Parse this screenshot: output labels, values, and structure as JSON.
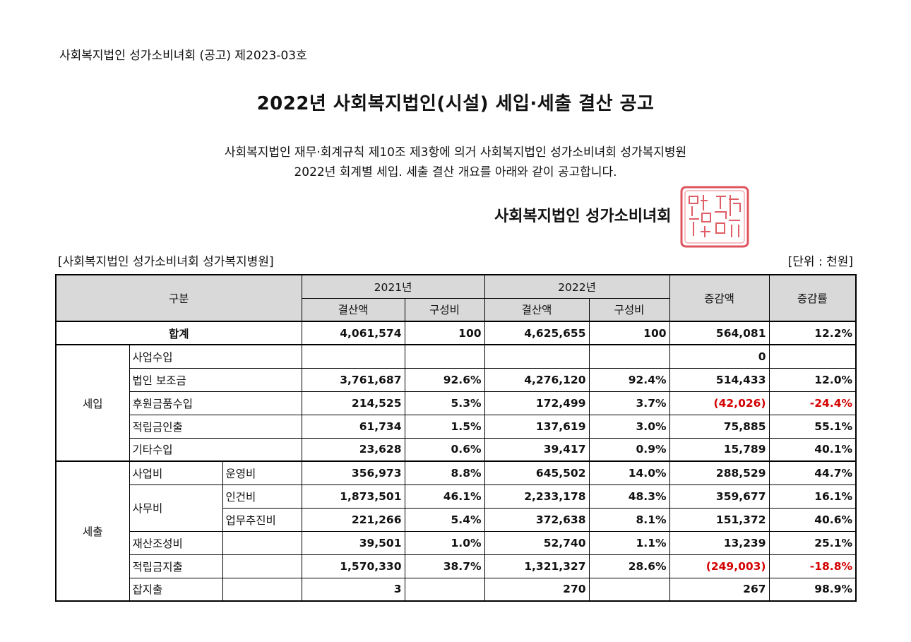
{
  "notice_number": "사회복지법인 성가소비녀회 (공고) 제2023-03호",
  "title": "2022년 사회복지법인(시설) 세입·세출 결산 공고",
  "intro_line1": "사회복지법인 재무·회계규칙 제10조 제3항에 의거 사회복지법인 성가소비녀회 성가복지병원",
  "intro_line2": "2022년 회계별 세입. 세출 결산 개요를 아래와 같이 공고합니다.",
  "issuer": "사회복지법인 성가소비녀회",
  "seal_text": "사회복지법인성가소비녀회인",
  "org_label": "[사회복지법인 성가소비녀회 성가복지병원]",
  "unit_label": "[단위 : 천원]",
  "colors": {
    "header_bg": "#d9d9d9",
    "negative": "#d40000",
    "seal": "#d8363f"
  },
  "table": {
    "header": {
      "category": "구분",
      "year1": "2021년",
      "year2": "2022년",
      "amount": "결산액",
      "ratio": "구성비",
      "change": "증감액",
      "rate": "증감률"
    },
    "total": {
      "label": "합계",
      "a2021": "4,061,574",
      "r2021": "100",
      "a2022": "4,625,655",
      "r2022": "100",
      "change": "564,081",
      "rate": "12.2%"
    },
    "revenue": {
      "group": "세입",
      "rows": [
        {
          "label": "사업수입",
          "a2021": "",
          "r2021": "",
          "a2022": "",
          "r2022": "",
          "change": "0",
          "rate": ""
        },
        {
          "label": "법인 보조금",
          "a2021": "3,761,687",
          "r2021": "92.6%",
          "a2022": "4,276,120",
          "r2022": "92.4%",
          "change": "514,433",
          "rate": "12.0%"
        },
        {
          "label": "후원금품수입",
          "a2021": "214,525",
          "r2021": "5.3%",
          "a2022": "172,499",
          "r2022": "3.7%",
          "change": "(42,026)",
          "rate": "-24.4%"
        },
        {
          "label": "적립금인출",
          "a2021": "61,734",
          "r2021": "1.5%",
          "a2022": "137,619",
          "r2022": "3.0%",
          "change": "75,885",
          "rate": "55.1%"
        },
        {
          "label": "기타수입",
          "a2021": "23,628",
          "r2021": "0.6%",
          "a2022": "39,417",
          "r2022": "0.9%",
          "change": "15,789",
          "rate": "40.1%"
        }
      ]
    },
    "expense": {
      "group": "세출",
      "business": {
        "label": "사업비",
        "sub": "운영비",
        "a2021": "356,973",
        "r2021": "8.8%",
        "a2022": "645,502",
        "r2022": "14.0%",
        "change": "288,529",
        "rate": "44.7%"
      },
      "office_label": "사무비",
      "office": [
        {
          "sub": "인건비",
          "a2021": "1,873,501",
          "r2021": "46.1%",
          "a2022": "2,233,178",
          "r2022": "48.3%",
          "change": "359,677",
          "rate": "16.1%"
        },
        {
          "sub": "업무추진비",
          "a2021": "221,266",
          "r2021": "5.4%",
          "a2022": "372,638",
          "r2022": "8.1%",
          "change": "151,372",
          "rate": "40.6%"
        }
      ],
      "others": [
        {
          "label": "재산조성비",
          "a2021": "39,501",
          "r2021": "1.0%",
          "a2022": "52,740",
          "r2022": "1.1%",
          "change": "13,239",
          "rate": "25.1%"
        },
        {
          "label": "적립금지출",
          "a2021": "1,570,330",
          "r2021": "38.7%",
          "a2022": "1,321,327",
          "r2022": "28.6%",
          "change": "(249,003)",
          "rate": "-18.8%"
        },
        {
          "label": "잡지출",
          "a2021": "3",
          "r2021": "",
          "a2022": "270",
          "r2022": "",
          "change": "267",
          "rate": "98.9%"
        }
      ]
    }
  }
}
